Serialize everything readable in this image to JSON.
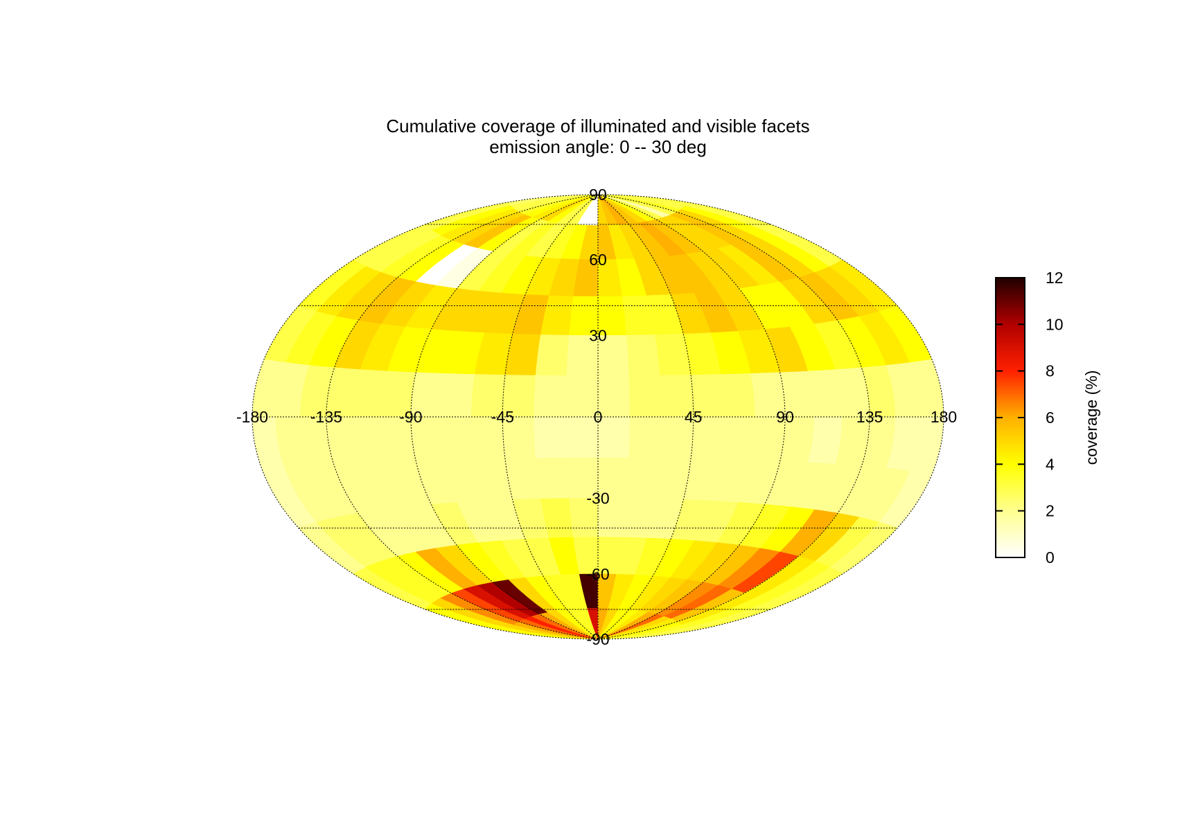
{
  "chart_data": {
    "type": "heatmap",
    "projection": "hammer-aitoff",
    "title": "Cumulative coverage of illuminated and visible facets",
    "subtitle": "emission angle:  0 -- 30 deg",
    "x_ticks": [
      "-180",
      "-135",
      "-90",
      "-45",
      "0",
      "45",
      "90",
      "135",
      "180"
    ],
    "y_ticks": [
      "90",
      "60",
      "30",
      "-30",
      "-60",
      "-90"
    ],
    "lon_values": [
      -180,
      -135,
      -90,
      -45,
      0,
      45,
      90,
      135,
      180
    ],
    "lat_values": [
      90,
      60,
      30,
      -30,
      -60,
      -90
    ],
    "colorbar": {
      "label": "coverage (%)",
      "ticks": [
        "0",
        "2",
        "4",
        "6",
        "8",
        "10",
        "12"
      ],
      "range": [
        0,
        12
      ],
      "stops": [
        "#ffffff",
        "#ffff90",
        "#ffff00",
        "#ffb000",
        "#ff2000",
        "#b00000",
        "#200000"
      ]
    },
    "grid": true,
    "lat_bands": [
      {
        "lat": [
          75,
          90
        ],
        "values": [
          2.5,
          3,
          3,
          3.5,
          4,
          4.5,
          5,
          4,
          3,
          3,
          0,
          0,
          5,
          5.5,
          6,
          5.5,
          5,
          4,
          3,
          1.5,
          3,
          3.5,
          3,
          3
        ]
      },
      {
        "lat": [
          60,
          75
        ],
        "values": [
          3,
          4,
          4.5,
          5,
          5.5,
          4,
          3,
          3.5,
          3,
          3.5,
          4,
          5,
          5.5,
          4.5,
          5,
          5.5,
          6,
          5.5,
          5,
          5,
          5.5,
          5,
          4,
          3
        ]
      },
      {
        "lat": [
          45,
          60
        ],
        "values": [
          3,
          3,
          3.5,
          4,
          0,
          0.5,
          3,
          3.5,
          4,
          4.5,
          5,
          5.5,
          4.5,
          4,
          5,
          5.5,
          5.5,
          5,
          5,
          4.5,
          5.5,
          5,
          4,
          3
        ]
      },
      {
        "lat": [
          30,
          45
        ],
        "values": [
          3.5,
          4.5,
          5,
          5.5,
          5,
          4.5,
          5,
          5,
          5,
          5.5,
          4.5,
          4,
          4,
          3.5,
          3.5,
          5,
          5.5,
          5,
          4,
          4,
          5,
          5.5,
          5,
          4.5
        ]
      },
      {
        "lat": [
          15,
          30
        ],
        "values": [
          3,
          3.5,
          4,
          5,
          4.5,
          4,
          4,
          4,
          4.5,
          5,
          2.5,
          2,
          2,
          2.5,
          3,
          3.5,
          4,
          4.5,
          5,
          4,
          3.5,
          4,
          4.5,
          4
        ]
      },
      {
        "lat": [
          0,
          15
        ],
        "values": [
          2,
          2,
          2.5,
          2.5,
          2.5,
          2.5,
          2,
          2,
          2.5,
          2.5,
          2,
          2,
          2,
          2.5,
          2.5,
          2.5,
          2.5,
          2,
          2,
          2,
          2,
          2.5,
          2,
          2
        ]
      },
      {
        "lat": [
          -15,
          0
        ],
        "values": [
          1.5,
          2,
          2,
          2,
          2,
          2,
          2,
          2,
          2,
          2,
          1.5,
          1.5,
          1.5,
          2,
          2,
          2,
          2,
          2,
          2,
          1.5,
          2,
          2,
          1.5,
          1.5
        ]
      },
      {
        "lat": [
          -30,
          -15
        ],
        "values": [
          1.5,
          2,
          2,
          2,
          2,
          2,
          2,
          2,
          2,
          2,
          2,
          2,
          2,
          2,
          2,
          2,
          2,
          2,
          2,
          2,
          2,
          2,
          2,
          1.5
        ]
      },
      {
        "lat": [
          -45,
          -30
        ],
        "values": [
          2,
          2.5,
          2.5,
          2,
          2,
          2,
          2.5,
          2,
          2,
          2.5,
          3,
          2.5,
          2,
          2,
          2,
          2.5,
          2.5,
          3,
          3.5,
          4,
          6,
          5,
          3,
          2.5
        ]
      },
      {
        "lat": [
          -60,
          -45
        ],
        "values": [
          3,
          3.5,
          3.5,
          4,
          6,
          5,
          4,
          3.5,
          3,
          3,
          4,
          3,
          3,
          3,
          3.5,
          4,
          4.5,
          5,
          5.5,
          6.5,
          7.5,
          4.5,
          3.5,
          3
        ]
      },
      {
        "lat": [
          -75,
          -60
        ],
        "values": [
          4,
          5,
          6.5,
          7.5,
          9,
          10,
          11,
          5,
          4,
          3.5,
          3.5,
          11.5,
          5.5,
          4.5,
          4,
          4.5,
          5,
          5.5,
          6.5,
          7,
          5.5,
          4.5,
          3.5,
          3
        ]
      },
      {
        "lat": [
          -90,
          -75
        ],
        "values": [
          4,
          5,
          6,
          7,
          8,
          7,
          6,
          5,
          4,
          3.5,
          3.5,
          9,
          6,
          5,
          4,
          4,
          4.5,
          6,
          7,
          5,
          4.5,
          4,
          3.5,
          3
        ]
      }
    ]
  }
}
